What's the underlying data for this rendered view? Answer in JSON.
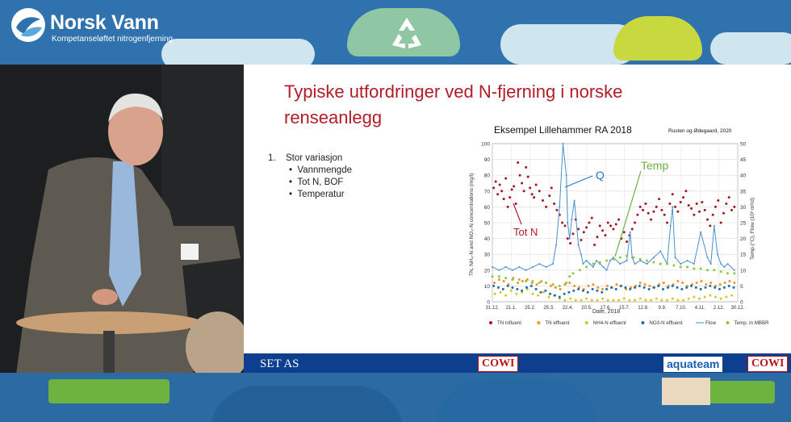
{
  "banner": {
    "brand_name": "Norsk Vann",
    "brand_subtitle": "Kompetanseløftet nitrogenfjerning"
  },
  "slide": {
    "title": "Typiske utfordringer ved N-fjerning i norske renseanlegg",
    "bullets": [
      {
        "number": "1.",
        "label": "Stor variasjon",
        "sub_items": [
          "Vannmengde",
          "Tot N, BOF",
          "Temperatur"
        ]
      }
    ]
  },
  "footer": {
    "left_label": "SET AS",
    "center_logo": "COWI",
    "right_logo_1": "aquateam",
    "right_logo_2": "COWI"
  },
  "chart_data": {
    "type": "scatter",
    "title": "Eksempel Lillehammer RA 2018",
    "source_note": "Rusten og Ødegaard, 2020",
    "xlabel": "Date, 2018",
    "ylabel_left": "TN, NH₄-N and NO₃-N concentrations (mg/l)",
    "ylabel_right": "Temp.(°C), Flow (10³ m³/d)",
    "ylim_left": [
      0,
      100
    ],
    "ylim_right": [
      0,
      50
    ],
    "x_ticks": [
      "31.12.",
      "21.1.",
      "25.2.",
      "25.3.",
      "22.4.",
      "20.5.",
      "17.6.",
      "15.7.",
      "12.8.",
      "9.9.",
      "7.10.",
      "4.11.",
      "2.12.",
      "30.12."
    ],
    "y_ticks_left": [
      0,
      10,
      20,
      30,
      40,
      50,
      60,
      70,
      80,
      90,
      100
    ],
    "y_ticks_right": [
      0,
      5,
      10,
      15,
      20,
      25,
      30,
      35,
      40,
      45,
      50
    ],
    "annotations": [
      {
        "text": "Q",
        "color": "#2f74c9"
      },
      {
        "text": "Temp",
        "color": "#6cb33f"
      },
      {
        "text": "Tot N",
        "color": "#b31c26"
      }
    ],
    "legend_position": "bottom",
    "series": [
      {
        "name": "TN influent",
        "color": "#a3161f",
        "kind": "points",
        "x": [
          2,
          5,
          8,
          11,
          14,
          17,
          20,
          23,
          26,
          29,
          32,
          35,
          38,
          41,
          44,
          47,
          50,
          53,
          56,
          59,
          62,
          65,
          70,
          75,
          80,
          85,
          88,
          92,
          96,
          100,
          104,
          108,
          112,
          116,
          120,
          124,
          128,
          132,
          136,
          140,
          144,
          148,
          152,
          156,
          160,
          164,
          168,
          172,
          176,
          180,
          184,
          188,
          192,
          196,
          200,
          204,
          208,
          212,
          216,
          220,
          224,
          228,
          232,
          236,
          240,
          244,
          248,
          252,
          256,
          260,
          264,
          268,
          272,
          276,
          280,
          284,
          288,
          292,
          296,
          300,
          304,
          308,
          312,
          316,
          320,
          324,
          328,
          332,
          336,
          340,
          344,
          348,
          352,
          356,
          360
        ],
        "y": [
          72,
          76,
          68,
          74,
          70,
          65,
          78,
          60,
          66,
          71,
          73,
          62,
          88,
          80,
          75,
          70,
          85,
          79,
          72,
          68,
          66,
          74,
          70,
          64,
          60,
          67,
          72,
          62,
          58,
          55,
          50,
          48,
          40,
          37,
          43,
          52,
          46,
          39,
          44,
          47,
          50,
          53,
          36,
          41,
          48,
          45,
          42,
          50,
          48,
          46,
          49,
          52,
          40,
          44,
          38,
          42,
          46,
          50,
          55,
          60,
          58,
          62,
          56,
          52,
          57,
          60,
          65,
          58,
          55,
          50,
          62,
          68,
          60,
          57,
          63,
          66,
          70,
          61,
          59,
          55,
          62,
          57,
          63,
          58,
          52,
          48,
          55,
          60,
          64,
          50,
          56,
          62,
          66,
          58,
          60
        ]
      },
      {
        "name": "TN effluent",
        "color": "#f0921e",
        "kind": "points",
        "x": [
          3,
          10,
          17,
          24,
          31,
          38,
          45,
          52,
          59,
          66,
          73,
          80,
          87,
          94,
          101,
          108,
          115,
          122,
          129,
          136,
          143,
          150,
          157,
          164,
          171,
          178,
          185,
          192,
          199,
          206,
          213,
          220,
          227,
          234,
          241,
          248,
          255,
          262,
          269,
          276,
          283,
          290,
          297,
          304,
          311,
          318,
          325,
          332,
          339,
          346,
          353,
          360
        ],
        "y": [
          12,
          14,
          13,
          11,
          15,
          12,
          13,
          14,
          12,
          11,
          13,
          12,
          10,
          9,
          8,
          11,
          12,
          10,
          9,
          8,
          10,
          11,
          9,
          8,
          10,
          9,
          11,
          10,
          8,
          9,
          10,
          12,
          11,
          10,
          9,
          11,
          12,
          10,
          11,
          13,
          12,
          10,
          11,
          12,
          13,
          11,
          12,
          10,
          11,
          12,
          13,
          12
        ]
      },
      {
        "name": "NH4-N effluent",
        "color": "#d9c625",
        "kind": "points",
        "x": [
          4,
          12,
          20,
          28,
          36,
          44,
          52,
          60,
          68,
          76,
          84,
          92,
          100,
          108,
          116,
          124,
          132,
          140,
          148,
          156,
          164,
          172,
          180,
          188,
          196,
          204,
          212,
          220,
          228,
          236,
          244,
          252,
          260,
          268,
          276,
          284,
          292,
          300,
          308,
          316,
          324,
          332,
          340,
          348,
          356
        ],
        "y": [
          5,
          6,
          4,
          7,
          5,
          6,
          8,
          5,
          4,
          6,
          3,
          4,
          2,
          1,
          2,
          1,
          1,
          2,
          1,
          1,
          2,
          1,
          1,
          1,
          2,
          1,
          1,
          2,
          1,
          1,
          2,
          1,
          1,
          2,
          1,
          1,
          2,
          3,
          2,
          3,
          4,
          3,
          2,
          3,
          4
        ]
      },
      {
        "name": "NO3-N effluent",
        "color": "#1f6fa8",
        "kind": "points",
        "x": [
          2,
          9,
          16,
          23,
          30,
          37,
          44,
          51,
          58,
          65,
          72,
          79,
          86,
          93,
          100,
          107,
          114,
          121,
          128,
          135,
          142,
          149,
          156,
          163,
          170,
          177,
          184,
          191,
          198,
          205,
          212,
          219,
          226,
          233,
          240,
          247,
          254,
          261,
          268,
          275,
          282,
          289,
          296,
          303,
          310,
          317,
          324,
          331,
          338,
          345,
          352,
          359
        ],
        "y": [
          10,
          9,
          8,
          10,
          9,
          8,
          7,
          9,
          10,
          8,
          6,
          7,
          5,
          4,
          3,
          5,
          6,
          7,
          8,
          7,
          6,
          8,
          7,
          6,
          8,
          9,
          8,
          10,
          9,
          8,
          9,
          10,
          9,
          8,
          9,
          10,
          8,
          9,
          10,
          9,
          8,
          9,
          10,
          9,
          8,
          9,
          10,
          9,
          8,
          9,
          10,
          9
        ]
      },
      {
        "name": "Flow",
        "color": "#4a8fce",
        "kind": "line",
        "x": [
          0,
          10,
          20,
          30,
          40,
          50,
          60,
          70,
          80,
          90,
          95,
          100,
          105,
          110,
          112,
          115,
          118,
          122,
          128,
          132,
          135,
          140,
          145,
          150,
          155,
          160,
          165,
          170,
          175,
          180,
          190,
          200,
          205,
          208,
          212,
          220,
          230,
          240,
          250,
          260,
          265,
          268,
          272,
          280,
          290,
          300,
          310,
          320,
          325,
          330,
          335,
          340,
          345,
          350,
          360
        ],
        "y": [
          11,
          10,
          11,
          10,
          11,
          10,
          11,
          12,
          11,
          12,
          18,
          30,
          50,
          40,
          25,
          20,
          26,
          32,
          18,
          15,
          12,
          13,
          12,
          11,
          13,
          12,
          11,
          10,
          13,
          14,
          12,
          13,
          22,
          14,
          12,
          13,
          12,
          14,
          16,
          12,
          24,
          30,
          14,
          12,
          13,
          12,
          22,
          14,
          12,
          24,
          15,
          12,
          11,
          12,
          10
        ]
      },
      {
        "name": "Temp. in MBBR",
        "color": "#8cc63f",
        "kind": "points",
        "x": [
          0,
          10,
          20,
          30,
          40,
          50,
          60,
          70,
          80,
          90,
          100,
          110,
          115,
          120,
          130,
          140,
          150,
          160,
          170,
          180,
          190,
          200,
          210,
          220,
          230,
          240,
          250,
          260,
          270,
          280,
          290,
          300,
          310,
          320,
          330,
          340,
          350,
          360
        ],
        "y": [
          8,
          8,
          7.5,
          7,
          7,
          6.5,
          6.5,
          6,
          6,
          5.5,
          5,
          6,
          8,
          9,
          10,
          11,
          12,
          12.5,
          13,
          13.5,
          14,
          14.5,
          14,
          13.5,
          13,
          12.5,
          12,
          12,
          11.5,
          11,
          11,
          10.5,
          10.5,
          10,
          10,
          9.5,
          9,
          9
        ]
      }
    ]
  }
}
